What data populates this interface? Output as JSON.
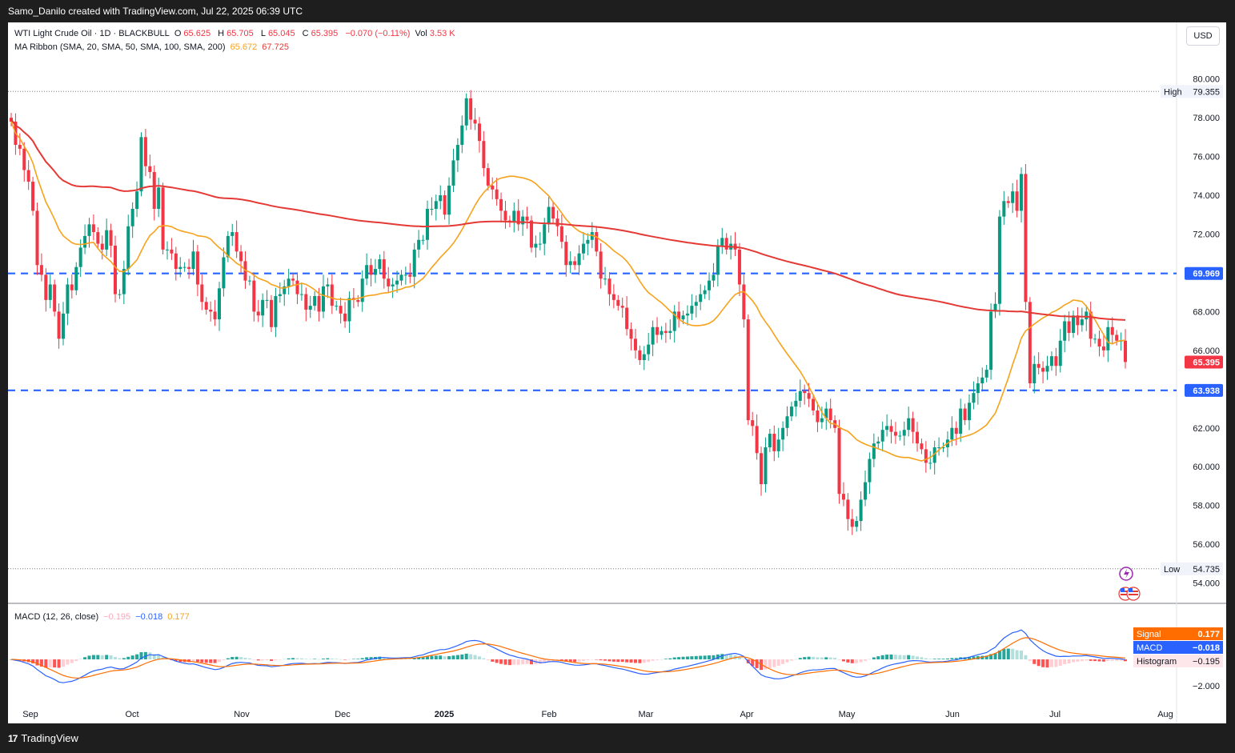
{
  "header": {
    "credit": "Samo_Danilo created with TradingView.com, Jul 22, 2025 06:39 UTC"
  },
  "footer": {
    "brand": "TradingView",
    "brand_mark": "17"
  },
  "legend": {
    "symbol": "WTI Light Crude Oil · 1D · BLACKBULL",
    "o_label": "O",
    "o": "65.625",
    "h_label": "H",
    "h": "65.705",
    "l_label": "L",
    "l": "65.045",
    "c_label": "C",
    "c": "65.395",
    "change": "−0.070 (−0.11%)",
    "vol_label": "Vol",
    "vol": "3.53 K",
    "ma_label": "MA Ribbon (SMA, 20, SMA, 50, SMA, 100, SMA, 200)",
    "ma1": "65.672",
    "ma2": "67.725",
    "macd_label": "MACD (12, 26, close)",
    "macd_hist": "−0.195",
    "macd_line": "−0.018",
    "macd_signal": "0.177"
  },
  "currency_button": "USD",
  "colors": {
    "up": "#089981",
    "down": "#f23645",
    "ma20": "#f7a21b",
    "ma200": "#e53935",
    "level": "#2962ff",
    "macd": "#2962ff",
    "signal": "#ff6d00"
  },
  "chart_data": {
    "type": "candlestick",
    "y_ticks": [
      "80.000",
      "78.000",
      "76.000",
      "74.000",
      "72.000",
      "70.000",
      "68.000",
      "66.000",
      "64.000",
      "62.000",
      "60.000",
      "58.000",
      "56.000",
      "54.000"
    ],
    "ylim": [
      53.2,
      81.1
    ],
    "x_ticks": [
      "Sep",
      "Oct",
      "Nov",
      "Dec",
      "2025",
      "Feb",
      "Mar",
      "Apr",
      "May",
      "Jun",
      "Jul",
      "Aug"
    ],
    "high_label": "High",
    "high": 79.355,
    "low_label": "Low",
    "low": 54.735,
    "levels": [
      69.969,
      63.938
    ],
    "last_price": 65.395,
    "badges": [
      {
        "label": "High",
        "value": "79.355"
      },
      {
        "label": "",
        "value": "69.969"
      },
      {
        "label": "",
        "value": "65.395"
      },
      {
        "label": "",
        "value": "63.938"
      },
      {
        "label": "Low",
        "value": "54.735"
      }
    ],
    "closes": [
      77.8,
      76.6,
      76.4,
      75.3,
      74.7,
      73.2,
      70.4,
      69.9,
      68.6,
      69.4,
      68.0,
      66.6,
      67.9,
      69.4,
      69.1,
      70.3,
      71.3,
      71.9,
      72.5,
      72.1,
      71.5,
      71.2,
      72.2,
      71.4,
      68.9,
      68.9,
      70.2,
      72.4,
      73.3,
      74.2,
      77.0,
      75.5,
      75.2,
      73.3,
      74.4,
      71.2,
      71.2,
      71.0,
      70.2,
      70.3,
      70.3,
      70.2,
      71.1,
      69.4,
      68.5,
      68.1,
      68.0,
      67.6,
      69.2,
      70.8,
      71.9,
      72.1,
      71.1,
      70.6,
      69.6,
      69.6,
      68.0,
      67.8,
      68.6,
      68.6,
      67.2,
      68.8,
      68.9,
      69.3,
      69.7,
      69.6,
      68.9,
      68.9,
      68.1,
      68.3,
      68.8,
      68.0,
      69.3,
      69.4,
      68.3,
      68.3,
      67.9,
      67.5,
      68.7,
      68.6,
      68.5,
      69.7,
      70.4,
      69.9,
      70.2,
      70.7,
      69.7,
      69.3,
      69.4,
      69.6,
      69.9,
      69.9,
      69.8,
      71.2,
      71.7,
      71.7,
      73.3,
      73.3,
      73.7,
      74.0,
      73.0,
      74.5,
      75.8,
      76.6,
      77.6,
      79.0,
      77.9,
      77.7,
      76.8,
      75.4,
      74.5,
      74.3,
      73.8,
      73.2,
      72.7,
      72.6,
      73.2,
      72.5,
      72.9,
      72.7,
      71.3,
      71.5,
      71.5,
      72.5,
      73.4,
      72.8,
      72.4,
      71.6,
      70.4,
      70.6,
      70.4,
      71.0,
      71.5,
      71.7,
      72.1,
      71.1,
      69.7,
      69.7,
      68.9,
      68.6,
      68.3,
      68.2,
      67.1,
      66.6,
      66.0,
      65.5,
      65.8,
      66.3,
      67.2,
      66.8,
      67.0,
      66.9,
      67.0,
      68.0,
      67.6,
      67.8,
      67.9,
      68.3,
      68.5,
      68.9,
      69.1,
      69.6,
      69.9,
      71.4,
      71.8,
      71.2,
      71.5,
      71.2,
      69.4,
      67.6,
      62.4,
      62.1,
      60.7,
      59.1,
      61.0,
      61.7,
      60.8,
      61.4,
      62.0,
      62.6,
      63.1,
      63.4,
      63.9,
      63.8,
      63.5,
      62.9,
      62.3,
      62.5,
      63.0,
      62.4,
      62.0,
      58.6,
      58.3,
      57.3,
      56.9,
      57.2,
      58.3,
      59.2,
      60.4,
      61.2,
      61.3,
      61.9,
      62.1,
      61.8,
      61.6,
      61.6,
      61.9,
      62.5,
      61.8,
      61.2,
      60.9,
      60.2,
      60.2,
      61.0,
      61.0,
      61.0,
      61.4,
      62.0,
      61.7,
      63.0,
      62.4,
      63.3,
      63.8,
      64.3,
      64.6,
      65.0,
      68.0,
      68.4,
      72.9,
      73.7,
      73.6,
      74.2,
      73.2,
      75.1,
      68.5,
      64.3,
      65.3,
      65.1,
      64.9,
      65.2,
      65.7,
      65.2,
      66.5,
      67.5,
      66.9,
      67.8,
      67.3,
      67.6,
      68.0,
      66.6,
      66.6,
      66.2,
      66.0,
      67.2,
      66.8,
      66.5,
      66.5,
      65.4
    ]
  },
  "macd_data": {
    "hist_badge": "−0.195",
    "macd_badge": "−0.018",
    "signal_badge": "0.177",
    "tick": "−2.000",
    "label_signal": "Signal",
    "label_macd": "MACD",
    "label_hist": "Histogram"
  }
}
